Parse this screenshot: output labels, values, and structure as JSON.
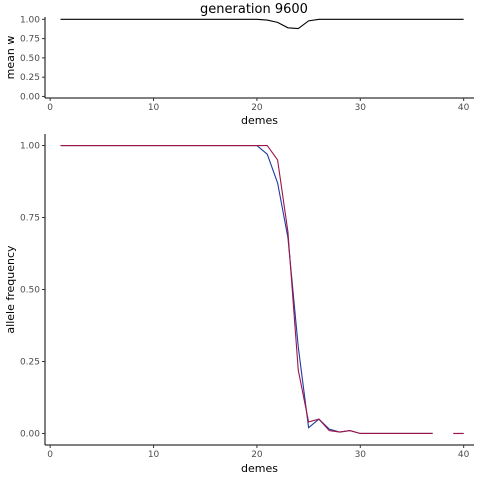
{
  "figure": {
    "title": "generation 9600"
  },
  "chart_data": [
    {
      "type": "line",
      "xlabel": "demes",
      "ylabel": "mean w",
      "xlim": [
        -0.5,
        41
      ],
      "ylim": [
        -0.02,
        1.03
      ],
      "xticks": [
        0,
        10,
        20,
        30,
        40
      ],
      "yticks": [
        0.0,
        0.25,
        0.5,
        0.75,
        1.0
      ],
      "ytick_labels": [
        "0.00",
        "0.25",
        "0.50",
        "0.75",
        "1.00"
      ],
      "grid": false,
      "series": [
        {
          "color": "#000000",
          "x": [
            1,
            2,
            3,
            4,
            5,
            6,
            7,
            8,
            9,
            10,
            11,
            12,
            13,
            14,
            15,
            16,
            17,
            18,
            19,
            20,
            21,
            22,
            23,
            24,
            25,
            26,
            27,
            28,
            29,
            30,
            31,
            32,
            33,
            34,
            35,
            36,
            37,
            38,
            39,
            40
          ],
          "y": [
            1,
            1,
            1,
            1,
            1,
            1,
            1,
            1,
            1,
            1,
            1,
            1,
            1,
            1,
            1,
            1,
            1,
            1,
            1,
            1,
            0.99,
            0.96,
            0.89,
            0.88,
            0.98,
            1,
            1,
            1,
            1,
            1,
            1,
            1,
            1,
            1,
            1,
            1,
            1,
            1,
            1,
            1
          ]
        }
      ]
    },
    {
      "type": "line",
      "xlabel": "demes",
      "ylabel": "allele frequency",
      "xlim": [
        -0.5,
        41
      ],
      "ylim": [
        -0.04,
        1.04
      ],
      "xticks": [
        0,
        10,
        20,
        30,
        40
      ],
      "yticks": [
        0.0,
        0.25,
        0.5,
        0.75,
        1.0
      ],
      "ytick_labels": [
        "0.00",
        "0.25",
        "0.50",
        "0.75",
        "1.00"
      ],
      "grid": false,
      "series": [
        {
          "color": "#1f3ba0",
          "x": [
            1,
            2,
            3,
            4,
            5,
            6,
            7,
            8,
            9,
            10,
            11,
            12,
            13,
            14,
            15,
            16,
            17,
            18,
            19,
            20,
            21,
            22,
            23,
            24,
            25,
            26,
            27,
            28,
            29,
            30,
            31,
            32,
            33,
            34,
            35,
            36,
            37,
            38,
            39,
            40
          ],
          "y": [
            1,
            1,
            1,
            1,
            1,
            1,
            1,
            1,
            1,
            1,
            1,
            1,
            1,
            1,
            1,
            1,
            1,
            1,
            1,
            1,
            0.97,
            0.87,
            0.68,
            0.3,
            0.02,
            0.05,
            0.015,
            0.005,
            0.01,
            0,
            0,
            0,
            0,
            0,
            0,
            0,
            0,
            null,
            0,
            0
          ]
        },
        {
          "color": "#a0144a",
          "x": [
            1,
            2,
            3,
            4,
            5,
            6,
            7,
            8,
            9,
            10,
            11,
            12,
            13,
            14,
            15,
            16,
            17,
            18,
            19,
            20,
            21,
            22,
            23,
            24,
            25,
            26,
            27,
            28,
            29,
            30,
            31,
            32,
            33,
            34,
            35,
            36,
            37,
            38,
            39,
            40
          ],
          "y": [
            1,
            1,
            1,
            1,
            1,
            1,
            1,
            1,
            1,
            1,
            1,
            1,
            1,
            1,
            1,
            1,
            1,
            1,
            1,
            1,
            1,
            0.95,
            0.7,
            0.22,
            0.04,
            0.05,
            0.01,
            0.005,
            0.01,
            0,
            0,
            0,
            0,
            0,
            0,
            0,
            0,
            null,
            0,
            0
          ]
        }
      ]
    }
  ]
}
